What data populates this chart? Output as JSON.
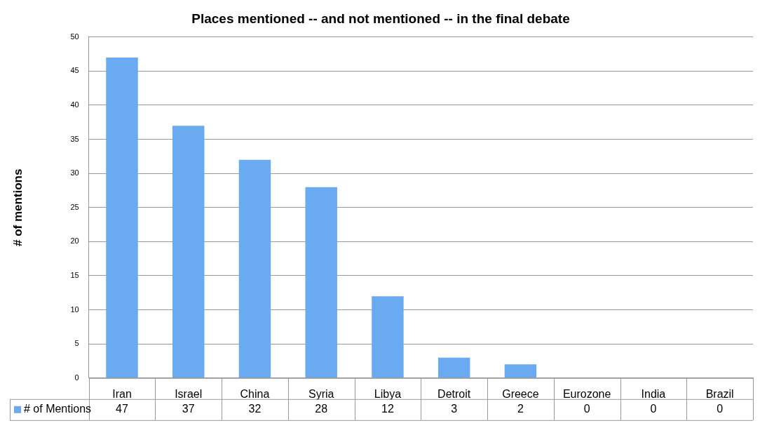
{
  "chart_data": {
    "type": "bar",
    "title": "Places mentioned -- and not mentioned -- in the final debate",
    "ylabel": "# of mentions",
    "categories": [
      "Iran",
      "Israel",
      "China",
      "Syria",
      "Libya",
      "Detroit",
      "Greece",
      "Eurozone",
      "India",
      "Brazil"
    ],
    "series": [
      {
        "name": "# of Mentions",
        "color": "#6aaaf0",
        "values": [
          47,
          37,
          32,
          28,
          12,
          3,
          2,
          0,
          0,
          0
        ]
      }
    ],
    "ylim": [
      0,
      50
    ],
    "yticks": [
      0,
      5,
      10,
      15,
      20,
      25,
      30,
      35,
      40,
      45,
      50
    ],
    "grid": "y",
    "legend": "bottom",
    "data_labels": true
  }
}
